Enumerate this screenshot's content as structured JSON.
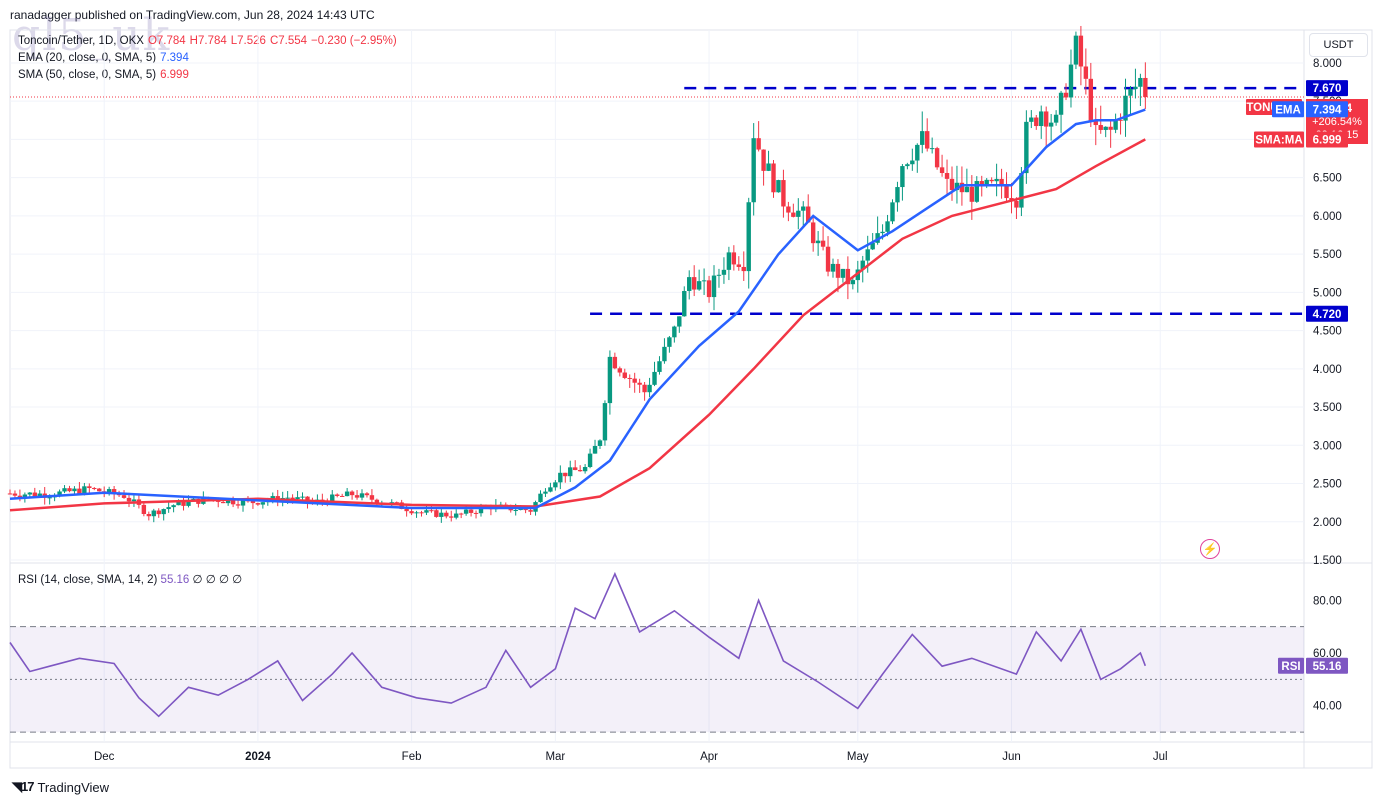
{
  "header": {
    "publish_line": "ranadagger published on TradingView.com, Jun 28, 2024 14:43 UTC",
    "watermark": "ql5_uk"
  },
  "legend": {
    "symbol": "Toncoin/Tether, 1D, OKX",
    "open": "O7.784",
    "high": "H7.784",
    "low": "L7.526",
    "close": "C7.554",
    "change": "−0.230 (−2.95%)",
    "ema_label": "EMA (20, close, 0, SMA, 5)",
    "ema_value": "7.394",
    "sma_label": "SMA (50, close, 0, SMA, 5)",
    "sma_value": "6.999"
  },
  "currency": "USDT",
  "price_axis": {
    "ticks": [
      "8.000",
      "7.500",
      "7.000",
      "6.500",
      "6.000",
      "5.500",
      "5.000",
      "4.500",
      "4.000",
      "3.500",
      "3.000",
      "2.500",
      "2.000",
      "1.500"
    ],
    "tick_values": [
      8.0,
      7.5,
      7.0,
      6.5,
      6.0,
      5.5,
      5.0,
      4.5,
      4.0,
      3.5,
      3.0,
      2.5,
      2.0,
      1.5
    ]
  },
  "badges": {
    "resistance": "7.670",
    "symbol": "TONUSDT",
    "last": "7.554",
    "change_pct": "+206.54%",
    "countdown": "09:16:15",
    "ema_tag": "EMA",
    "ema_val": "7.394",
    "sma_tag": "SMA:MA",
    "sma_val": "6.999",
    "support": "4.720",
    "rsi_tag": "RSI",
    "rsi_val": "55.16"
  },
  "rsi_panel": {
    "legend_label": "RSI (14, close, SMA, 14, 2)",
    "legend_value": "55.16",
    "legend_extra": "∅ ∅ ∅ ∅",
    "ticks": [
      "80.00",
      "60.00",
      "40.00"
    ],
    "tick_values": [
      80,
      60,
      40
    ]
  },
  "time_axis": {
    "labels": [
      "Dec",
      "2024",
      "Feb",
      "Mar",
      "Apr",
      "May",
      "Jun",
      "Jul"
    ]
  },
  "footer": {
    "brand": "TradingView"
  },
  "colors": {
    "up": "#089981",
    "down": "#f23645",
    "ema": "#2962ff",
    "sma": "#f23645",
    "rsi": "#7e57c2",
    "level_line": "#0000cc"
  },
  "chart_data": {
    "type": "candlestick",
    "symbol": "TONUSDT",
    "timeframe": "1D",
    "ylim": [
      1.5,
      8.3
    ],
    "x_range": [
      "2023-11-12",
      "2024-06-28"
    ],
    "horizontal_levels": [
      {
        "value": 7.67,
        "from": "2024-03-27",
        "to": "2024-06-30",
        "style": "dashed"
      },
      {
        "value": 4.72,
        "from": "2024-03-08",
        "to": "2024-06-30",
        "style": "dashed"
      }
    ],
    "close_path": [
      [
        "2023-11-12",
        2.37
      ],
      [
        "2023-11-20",
        2.36
      ],
      [
        "2023-11-28",
        2.43
      ],
      [
        "2023-12-05",
        2.34
      ],
      [
        "2023-12-10",
        2.1
      ],
      [
        "2023-12-15",
        2.22
      ],
      [
        "2023-12-22",
        2.3
      ],
      [
        "2023-12-30",
        2.25
      ],
      [
        "2024-01-07",
        2.32
      ],
      [
        "2024-01-12",
        2.25
      ],
      [
        "2024-01-20",
        2.36
      ],
      [
        "2024-01-27",
        2.25
      ],
      [
        "2024-02-03",
        2.12
      ],
      [
        "2024-02-10",
        2.08
      ],
      [
        "2024-02-17",
        2.2
      ],
      [
        "2024-02-25",
        2.15
      ],
      [
        "2024-02-28",
        2.45
      ],
      [
        "2024-03-02",
        2.62
      ],
      [
        "2024-03-07",
        2.7
      ],
      [
        "2024-03-10",
        3.1
      ],
      [
        "2024-03-12",
        4.15
      ],
      [
        "2024-03-15",
        3.95
      ],
      [
        "2024-03-19",
        3.7
      ],
      [
        "2024-03-25",
        4.5
      ],
      [
        "2024-03-28",
        5.2
      ],
      [
        "2024-04-01",
        5.0
      ],
      [
        "2024-04-05",
        5.5
      ],
      [
        "2024-04-08",
        5.4
      ],
      [
        "2024-04-10",
        7.1
      ],
      [
        "2024-04-12",
        6.7
      ],
      [
        "2024-04-16",
        6.2
      ],
      [
        "2024-04-20",
        6.0
      ],
      [
        "2024-04-25",
        5.35
      ],
      [
        "2024-04-30",
        5.1
      ],
      [
        "2024-05-02",
        5.4
      ],
      [
        "2024-05-06",
        5.8
      ],
      [
        "2024-05-10",
        6.7
      ],
      [
        "2024-05-14",
        7.0
      ],
      [
        "2024-05-19",
        6.4
      ],
      [
        "2024-05-24",
        6.3
      ],
      [
        "2024-05-30",
        6.4
      ],
      [
        "2024-06-02",
        6.25
      ],
      [
        "2024-06-04",
        7.1
      ],
      [
        "2024-06-07",
        7.4
      ],
      [
        "2024-06-10",
        7.2
      ],
      [
        "2024-06-14",
        8.2
      ],
      [
        "2024-06-16",
        7.7
      ],
      [
        "2024-06-18",
        7.05
      ],
      [
        "2024-06-21",
        7.1
      ],
      [
        "2024-06-24",
        7.5
      ],
      [
        "2024-06-27",
        7.78
      ],
      [
        "2024-06-28",
        7.55
      ]
    ],
    "ema20_path": [
      [
        "2023-11-12",
        2.3
      ],
      [
        "2023-12-01",
        2.38
      ],
      [
        "2024-01-01",
        2.28
      ],
      [
        "2024-02-01",
        2.18
      ],
      [
        "2024-02-26",
        2.18
      ],
      [
        "2024-03-05",
        2.45
      ],
      [
        "2024-03-12",
        2.8
      ],
      [
        "2024-03-20",
        3.6
      ],
      [
        "2024-03-30",
        4.3
      ],
      [
        "2024-04-07",
        4.75
      ],
      [
        "2024-04-15",
        5.5
      ],
      [
        "2024-04-22",
        6.0
      ],
      [
        "2024-05-01",
        5.55
      ],
      [
        "2024-05-08",
        5.8
      ],
      [
        "2024-05-15",
        6.1
      ],
      [
        "2024-05-22",
        6.4
      ],
      [
        "2024-06-01",
        6.4
      ],
      [
        "2024-06-08",
        6.9
      ],
      [
        "2024-06-14",
        7.2
      ],
      [
        "2024-06-18",
        7.25
      ],
      [
        "2024-06-22",
        7.25
      ],
      [
        "2024-06-28",
        7.39
      ]
    ],
    "sma50_path": [
      [
        "2023-11-12",
        2.15
      ],
      [
        "2023-12-01",
        2.24
      ],
      [
        "2024-01-01",
        2.3
      ],
      [
        "2024-02-01",
        2.22
      ],
      [
        "2024-02-26",
        2.2
      ],
      [
        "2024-03-10",
        2.33
      ],
      [
        "2024-03-20",
        2.7
      ],
      [
        "2024-04-01",
        3.4
      ],
      [
        "2024-04-10",
        4.0
      ],
      [
        "2024-04-20",
        4.7
      ],
      [
        "2024-05-01",
        5.25
      ],
      [
        "2024-05-10",
        5.7
      ],
      [
        "2024-05-20",
        6.0
      ],
      [
        "2024-06-01",
        6.2
      ],
      [
        "2024-06-10",
        6.35
      ],
      [
        "2024-06-18",
        6.65
      ],
      [
        "2024-06-28",
        7.0
      ]
    ],
    "rsi_path": [
      [
        "2023-11-12",
        64
      ],
      [
        "2023-11-16",
        53
      ],
      [
        "2023-11-20",
        55
      ],
      [
        "2023-11-26",
        58
      ],
      [
        "2023-12-03",
        56
      ],
      [
        "2023-12-08",
        43
      ],
      [
        "2023-12-12",
        36
      ],
      [
        "2023-12-18",
        47
      ],
      [
        "2023-12-24",
        44
      ],
      [
        "2023-12-30",
        50
      ],
      [
        "2024-01-05",
        57
      ],
      [
        "2024-01-10",
        42
      ],
      [
        "2024-01-16",
        52
      ],
      [
        "2024-01-20",
        60
      ],
      [
        "2024-01-26",
        47
      ],
      [
        "2024-02-02",
        43
      ],
      [
        "2024-02-09",
        41
      ],
      [
        "2024-02-16",
        47
      ],
      [
        "2024-02-20",
        61
      ],
      [
        "2024-02-25",
        47
      ],
      [
        "2024-03-01",
        54
      ],
      [
        "2024-03-05",
        77
      ],
      [
        "2024-03-09",
        73
      ],
      [
        "2024-03-13",
        90
      ],
      [
        "2024-03-18",
        68
      ],
      [
        "2024-03-25",
        76
      ],
      [
        "2024-04-01",
        66
      ],
      [
        "2024-04-07",
        58
      ],
      [
        "2024-04-11",
        80
      ],
      [
        "2024-04-16",
        57
      ],
      [
        "2024-04-23",
        49
      ],
      [
        "2024-05-01",
        39
      ],
      [
        "2024-05-06",
        52
      ],
      [
        "2024-05-12",
        67
      ],
      [
        "2024-05-18",
        55
      ],
      [
        "2024-05-24",
        58
      ],
      [
        "2024-06-02",
        52
      ],
      [
        "2024-06-06",
        68
      ],
      [
        "2024-06-11",
        57
      ],
      [
        "2024-06-15",
        69
      ],
      [
        "2024-06-19",
        50
      ],
      [
        "2024-06-23",
        54
      ],
      [
        "2024-06-27",
        60
      ],
      [
        "2024-06-28",
        55.16
      ]
    ],
    "rsi_bands": {
      "upper": 70,
      "lower": 30,
      "mid": 50
    },
    "rsi_ylim": [
      27,
      93
    ],
    "last_price": 7.554
  }
}
